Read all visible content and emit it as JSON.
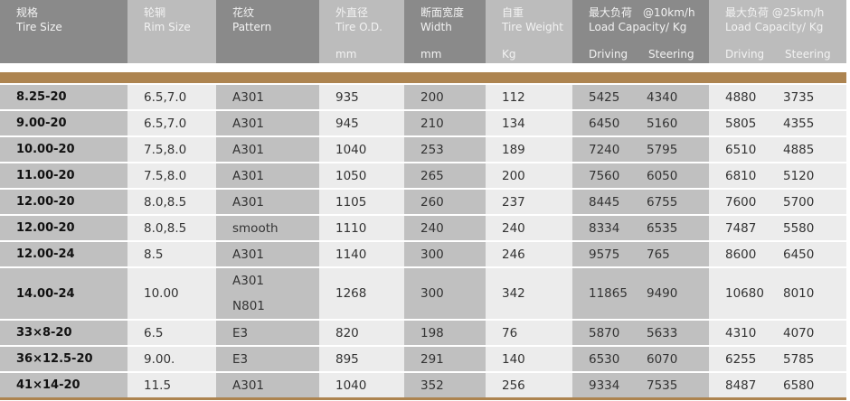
{
  "header": [
    {
      "cn": "规格",
      "en": "Tire Size",
      "unit": ""
    },
    {
      "cn": "轮辋",
      "en": "Rim Size",
      "unit": ""
    },
    {
      "cn": "花纹",
      "en": "Pattern",
      "unit": ""
    },
    {
      "cn": "外直径",
      "en": "Tire O.D.",
      "unit": "mm"
    },
    {
      "cn": "断面宽度",
      "en": "Width",
      "unit": "mm"
    },
    {
      "cn": "自重",
      "en": "Tire Weight",
      "unit": "Kg"
    },
    {
      "cn": "最大负荷　@10km/h",
      "en": "Load Capacity/  Kg",
      "driving": "Driving",
      "steering": "Steering"
    },
    {
      "cn": "最大负荷 @25km/h",
      "en": "Load Capacity/ Kg",
      "driving": "Driving",
      "steering": "Steering"
    }
  ],
  "rows": [
    {
      "size": "8.25-20",
      "rim": "6.5,7.0",
      "pattern": [
        "A301"
      ],
      "od": "935",
      "width": "200",
      "weight": "112",
      "d10": "5425",
      "s10": "4340",
      "d25": "4880",
      "s25": "3735"
    },
    {
      "size": "9.00-20",
      "rim": "6.5,7.0",
      "pattern": [
        "A301"
      ],
      "od": "945",
      "width": "210",
      "weight": "134",
      "d10": "6450",
      "s10": "5160",
      "d25": "5805",
      "s25": "4355"
    },
    {
      "size": "10.00-20",
      "rim": "7.5,8.0",
      "pattern": [
        "A301"
      ],
      "od": "1040",
      "width": "253",
      "weight": "189",
      "d10": "7240",
      "s10": "5795",
      "d25": "6510",
      "s25": "4885"
    },
    {
      "size": "11.00-20",
      "rim": "7.5,8.0",
      "pattern": [
        "A301"
      ],
      "od": "1050",
      "width": "265",
      "weight": "200",
      "d10": "7560",
      "s10": "6050",
      "d25": "6810",
      "s25": "5120"
    },
    {
      "size": "12.00-20",
      "rim": "8.0,8.5",
      "pattern": [
        "A301"
      ],
      "od": "1105",
      "width": "260",
      "weight": "237",
      "d10": "8445",
      "s10": "6755",
      "d25": "7600",
      "s25": "5700"
    },
    {
      "size": "12.00-20",
      "rim": "8.0,8.5",
      "pattern": [
        "smooth"
      ],
      "od": "1110",
      "width": "240",
      "weight": "240",
      "d10": "8334",
      "s10": "6535",
      "d25": "7487",
      "s25": "5580"
    },
    {
      "size": "12.00-24",
      "rim": "8.5",
      "pattern": [
        "A301"
      ],
      "od": "1140",
      "width": "300",
      "weight": "246",
      "d10": "9575",
      "s10": "765",
      "d25": "8600",
      "s25": "6450"
    },
    {
      "size": "14.00-24",
      "rim": "10.00",
      "pattern": [
        "A301",
        "N801"
      ],
      "od": "1268",
      "width": "300",
      "weight": "342",
      "d10": "11865",
      "s10": "9490",
      "d25": "10680",
      "s25": "8010"
    },
    {
      "size": "33×8-20",
      "rim": "6.5",
      "pattern": [
        "E3"
      ],
      "od": "820",
      "width": "198",
      "weight": "76",
      "d10": "5870",
      "s10": "5633",
      "d25": "4310",
      "s25": "4070"
    },
    {
      "size": "36×12.5-20",
      "rim": "9.00.",
      "pattern": [
        "E3"
      ],
      "od": "895",
      "width": "291",
      "weight": "140",
      "d10": "6530",
      "s10": "6070",
      "d25": "6255",
      "s25": "5785"
    },
    {
      "size": "41×14-20",
      "rim": "11.5",
      "pattern": [
        "A301"
      ],
      "od": "1040",
      "width": "352",
      "weight": "256",
      "d10": "9334",
      "s10": "7535",
      "d25": "8487",
      "s25": "6580"
    }
  ],
  "colors": {
    "header_dark": "#8a8a8a",
    "header_light": "#bcbcbc",
    "cell_dark": "#c0c0c0",
    "cell_light": "#ececec",
    "accent": "#ad8450"
  }
}
